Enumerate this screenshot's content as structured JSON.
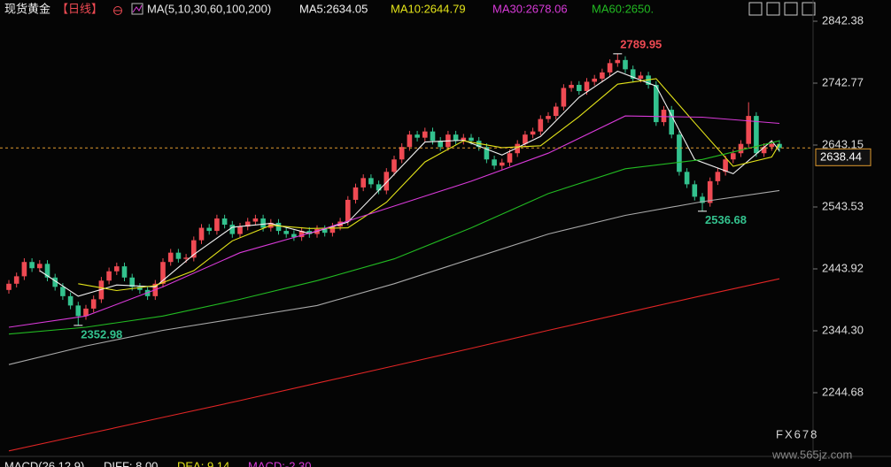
{
  "header": {
    "title": "现货黄金",
    "period": "【日线】",
    "ma_params": "MA(5,10,30,60,100,200)"
  },
  "footer": [
    "MACD(26,12,9)",
    "DIFF: 8.00",
    "DEA: 9.14",
    "MACD:-2.30"
  ],
  "watermark": {
    "logo": "FX678",
    "site": "www.565jz.com"
  },
  "chart_data": {
    "type": "candlestick",
    "up_color": "#ef4a53",
    "down_color": "#33c28e",
    "ylim": [
      2143.64,
      2876.53
    ],
    "yticks": [
      2842.38,
      2742.77,
      2643.15,
      2543.53,
      2443.92,
      {
        "value": 2344.3,
        "label": "2344.30"
      },
      2244.68
    ],
    "last_price": 2638.44,
    "open": [
      2410,
      2420,
      2432,
      2455,
      2445,
      2452,
      2430,
      2415,
      2400,
      2385,
      2368,
      2380,
      2395,
      2425,
      2440,
      2448,
      2430,
      2415,
      2410,
      2400,
      2420,
      2455,
      2470,
      2460,
      2462,
      2490,
      2510,
      2505,
      2525,
      2515,
      2500,
      2512,
      2520,
      2525,
      2510,
      2518,
      2505,
      2500,
      2495,
      2505,
      2500,
      2508,
      2502,
      2512,
      2520,
      2555,
      2575,
      2590,
      2580,
      2570,
      2600,
      2620,
      2640,
      2660,
      2655,
      2665,
      2650,
      2640,
      2660,
      2650,
      2655,
      2650,
      2640,
      2620,
      2610,
      2615,
      2630,
      2645,
      2660,
      2665,
      2685,
      2690,
      2705,
      2735,
      2740,
      2730,
      2745,
      2750,
      2760,
      2775,
      2780,
      2765,
      2750,
      2755,
      2740,
      2680,
      2700,
      2660,
      2600,
      2580,
      2560,
      2550,
      2585,
      2600,
      2620,
      2630,
      2645,
      2690,
      2630,
      2640,
      2645
    ],
    "high": [
      2426,
      2438,
      2461,
      2461,
      2458,
      2458,
      2436,
      2421,
      2406,
      2391,
      2386,
      2401,
      2431,
      2446,
      2454,
      2454,
      2436,
      2421,
      2416,
      2426,
      2461,
      2476,
      2476,
      2468,
      2496,
      2516,
      2516,
      2531,
      2531,
      2521,
      2518,
      2526,
      2531,
      2531,
      2524,
      2524,
      2511,
      2506,
      2511,
      2511,
      2514,
      2514,
      2518,
      2526,
      2561,
      2581,
      2596,
      2596,
      2586,
      2606,
      2626,
      2646,
      2666,
      2666,
      2671,
      2671,
      2656,
      2666,
      2666,
      2661,
      2661,
      2656,
      2646,
      2626,
      2621,
      2636,
      2651,
      2666,
      2671,
      2691,
      2696,
      2711,
      2741,
      2746,
      2746,
      2751,
      2756,
      2766,
      2781,
      2789.95,
      2786,
      2771,
      2761,
      2761,
      2746,
      2706,
      2706,
      2666,
      2606,
      2586,
      2566,
      2591,
      2606,
      2626,
      2636,
      2651,
      2712,
      2696,
      2646,
      2651,
      2651
    ],
    "low": [
      2404,
      2414,
      2426,
      2439,
      2439,
      2424,
      2409,
      2394,
      2379,
      2352.98,
      2362,
      2374,
      2389,
      2419,
      2434,
      2424,
      2409,
      2404,
      2394,
      2394,
      2414,
      2449,
      2454,
      2454,
      2456,
      2484,
      2499,
      2499,
      2509,
      2494,
      2494,
      2506,
      2514,
      2504,
      2504,
      2499,
      2494,
      2489,
      2489,
      2494,
      2494,
      2496,
      2496,
      2506,
      2514,
      2549,
      2569,
      2574,
      2564,
      2564,
      2594,
      2614,
      2634,
      2649,
      2649,
      2644,
      2634,
      2634,
      2644,
      2644,
      2644,
      2634,
      2614,
      2604,
      2604,
      2609,
      2624,
      2639,
      2654,
      2659,
      2679,
      2684,
      2699,
      2729,
      2724,
      2724,
      2739,
      2744,
      2754,
      2769,
      2759,
      2744,
      2744,
      2734,
      2674,
      2674,
      2654,
      2594,
      2574,
      2554,
      2536.68,
      2544,
      2579,
      2594,
      2614,
      2624,
      2639,
      2624,
      2624,
      2634,
      2632
    ],
    "close": [
      2420,
      2432,
      2455,
      2445,
      2452,
      2430,
      2415,
      2400,
      2385,
      2368,
      2380,
      2395,
      2425,
      2440,
      2448,
      2430,
      2415,
      2410,
      2400,
      2420,
      2455,
      2470,
      2460,
      2462,
      2490,
      2510,
      2505,
      2525,
      2515,
      2500,
      2512,
      2520,
      2525,
      2510,
      2518,
      2505,
      2500,
      2495,
      2505,
      2500,
      2508,
      2502,
      2512,
      2520,
      2555,
      2575,
      2590,
      2580,
      2570,
      2600,
      2620,
      2640,
      2660,
      2655,
      2665,
      2650,
      2640,
      2660,
      2650,
      2655,
      2650,
      2640,
      2620,
      2610,
      2615,
      2630,
      2645,
      2660,
      2665,
      2685,
      2690,
      2705,
      2735,
      2740,
      2730,
      2745,
      2750,
      2760,
      2775,
      2780,
      2765,
      2750,
      2755,
      2740,
      2680,
      2700,
      2660,
      2600,
      2580,
      2560,
      2550,
      2585,
      2600,
      2620,
      2630,
      2645,
      2690,
      2630,
      2640,
      2645,
      2638.44
    ],
    "lines": [
      {
        "label": "MA5:2634.05",
        "color": "#f2f2f2",
        "x": [
          4,
          9,
          14,
          19,
          24,
          29,
          34,
          39,
          44,
          49,
          54,
          59,
          64,
          69,
          74,
          79,
          84,
          89,
          94,
          99,
          100
        ],
        "values": [
          2441,
          2400,
          2418,
          2415,
          2467,
          2511,
          2517,
          2501,
          2519,
          2583,
          2648,
          2651,
          2627,
          2657,
          2720,
          2762,
          2738,
          2620,
          2597,
          2650,
          2634.05
        ]
      },
      {
        "label": "MA10:2644.79",
        "color": "#e4e419",
        "x": [
          9,
          14,
          19,
          24,
          29,
          34,
          39,
          44,
          49,
          54,
          59,
          64,
          69,
          74,
          79,
          84,
          89,
          94,
          99,
          100
        ],
        "values": [
          2420,
          2409,
          2417,
          2441,
          2489,
          2514,
          2509,
          2510,
          2551,
          2616,
          2650,
          2639,
          2642,
          2689,
          2741,
          2750,
          2679,
          2609,
          2624,
          2644.79
        ]
      },
      {
        "label": "MA30:2678.06",
        "color": "#d93ad9",
        "x": [
          0,
          10,
          20,
          30,
          40,
          50,
          60,
          70,
          80,
          90,
          100
        ],
        "values": [
          2350,
          2368,
          2415,
          2470,
          2505,
          2545,
          2585,
          2630,
          2690,
          2688,
          2678.06
        ]
      },
      {
        "label": "MA60:2650.",
        "color": "#22bb22",
        "x": [
          0,
          10,
          20,
          30,
          40,
          50,
          60,
          70,
          80,
          90,
          100
        ],
        "values": [
          2339,
          2350,
          2368,
          2395,
          2425,
          2460,
          2510,
          2565,
          2605,
          2620,
          2650
        ]
      },
      {
        "color": "#a9a9a9",
        "x": [
          0,
          10,
          20,
          30,
          40,
          50,
          60,
          70,
          80,
          90,
          100
        ],
        "values": [
          2290,
          2320,
          2345,
          2365,
          2385,
          2420,
          2460,
          2500,
          2530,
          2552,
          2570
        ]
      },
      {
        "color": "#e02525",
        "x": [
          0,
          10,
          20,
          30,
          40,
          50,
          60,
          70,
          80,
          90,
          100
        ],
        "values": [
          2151,
          2178,
          2205,
          2232,
          2260,
          2288,
          2316,
          2345,
          2373,
          2401,
          2428
        ]
      }
    ]
  }
}
